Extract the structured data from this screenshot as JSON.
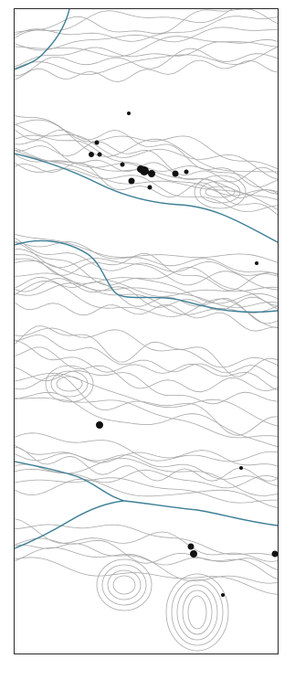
{
  "map": {
    "kind": "topographic contour map",
    "features": [
      "contour-lines",
      "rivers",
      "buildings"
    ]
  },
  "colors": {
    "contour": "#a9a9a9",
    "river": "#3d7f96",
    "building": "#111111",
    "frame": "#2a2a2a",
    "background": "#ffffff"
  }
}
